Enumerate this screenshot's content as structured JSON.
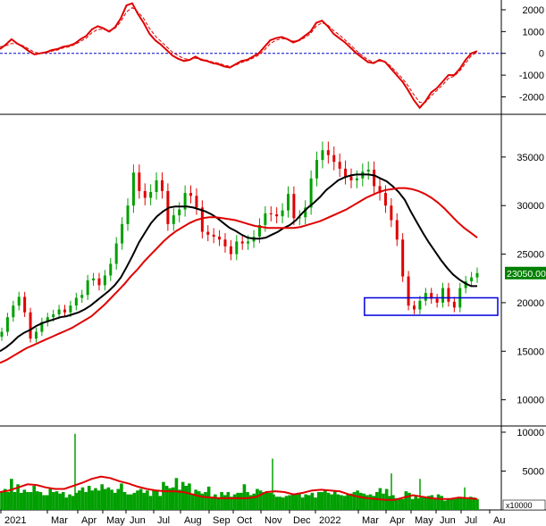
{
  "chart_data": [
    {
      "type": "line",
      "panel": "oscillator",
      "yticks": [
        2000,
        1000,
        0,
        -1000,
        -2000
      ],
      "ylim": [
        -2800,
        2450
      ],
      "zero_line": true,
      "series": [
        {
          "color": "#e00000",
          "style": "solid",
          "values": [
            200,
            400,
            650,
            450,
            300,
            100,
            -50,
            0,
            50,
            150,
            200,
            300,
            350,
            450,
            650,
            800,
            1100,
            1250,
            1150,
            1000,
            1200,
            1600,
            2200,
            2300,
            1800,
            1400,
            900,
            600,
            400,
            150,
            -100,
            -250,
            -350,
            -300,
            -150,
            -300,
            -350,
            -450,
            -500,
            -600,
            -650,
            -500,
            -350,
            -300,
            -150,
            0,
            300,
            600,
            700,
            750,
            650,
            500,
            600,
            800,
            1000,
            1400,
            1500,
            1250,
            900,
            700,
            500,
            250,
            0,
            -200,
            -400,
            -450,
            -300,
            -400,
            -700,
            -1000,
            -1300,
            -1700,
            -2150,
            -2500,
            -2200,
            -1800,
            -1600,
            -1300,
            -1000,
            -1000,
            -700,
            -300,
            0,
            100
          ],
          "type": "line"
        },
        {
          "color": "#e00000",
          "style": "dashed",
          "values": [
            300,
            350,
            450,
            450,
            350,
            200,
            50,
            0,
            20,
            100,
            150,
            250,
            300,
            400,
            550,
            700,
            950,
            1100,
            1100,
            1050,
            1150,
            1450,
            1900,
            2100,
            1900,
            1600,
            1150,
            800,
            550,
            300,
            50,
            -100,
            -250,
            -280,
            -220,
            -260,
            -320,
            -400,
            -450,
            -540,
            -600,
            -540,
            -420,
            -340,
            -220,
            -80,
            150,
            450,
            600,
            680,
            650,
            560,
            580,
            720,
            900,
            1250,
            1400,
            1300,
            1050,
            850,
            620,
            380,
            120,
            -100,
            -300,
            -400,
            -350,
            -380,
            -600,
            -880,
            -1150,
            -1500,
            -1900,
            -2250,
            -2250,
            -1950,
            -1700,
            -1450,
            -1150,
            -1050,
            -800,
            -450,
            -100,
            50
          ],
          "type": "line"
        }
      ]
    },
    {
      "type": "line",
      "panel": "price",
      "yticks": [
        35000,
        30000,
        25000,
        20000,
        15000,
        10000
      ],
      "ylim": [
        7300,
        39400
      ],
      "last_price_label": "23050.00",
      "last_price": 23050,
      "last_price_color": "#008000",
      "candle_up_color": "#00a000",
      "candle_down_color": "#e00000",
      "close": [
        17000,
        18500,
        19700,
        20600,
        19000,
        16300,
        17000,
        18000,
        18500,
        18800,
        19300,
        19000,
        19700,
        20500,
        20800,
        22300,
        22500,
        21800,
        22800,
        24000,
        26100,
        28100,
        30000,
        33400,
        31500,
        30800,
        31400,
        32600,
        31500,
        28100,
        29000,
        29600,
        31300,
        31000,
        29800,
        27300,
        27000,
        26800,
        26500,
        25800,
        25000,
        26300,
        26100,
        26300,
        26800,
        28000,
        29200,
        29100,
        28900,
        29500,
        31200,
        28700,
        28800,
        29800,
        32800,
        34700,
        35700,
        35200,
        34500,
        33800,
        33000,
        32600,
        32800,
        33500,
        33700,
        32000,
        31300,
        30000,
        28500,
        26500,
        22700,
        19700,
        19300,
        20200,
        21000,
        20400,
        20000,
        21500,
        20100,
        19500,
        21500,
        22200,
        22600,
        23050
      ],
      "series": [
        {
          "color": "#000000",
          "role": "short moving average",
          "values": [
            15000,
            15400,
            15900,
            16500,
            16900,
            17200,
            17600,
            17900,
            18100,
            18300,
            18500,
            18600,
            18800,
            19000,
            19300,
            19700,
            20200,
            20700,
            21200,
            21800,
            22600,
            23700,
            24900,
            26200,
            27200,
            28200,
            28900,
            29400,
            29800,
            29900,
            29900,
            29900,
            29800,
            29600,
            29400,
            29100,
            28700,
            28200,
            27700,
            27400,
            27000,
            26700,
            26600,
            26600,
            26700,
            27000,
            27300,
            27700,
            28000,
            28500,
            29200,
            29800,
            30300,
            30900,
            31600,
            32100,
            32600,
            32900,
            33100,
            33200,
            33200,
            33200,
            33100,
            32800,
            32500,
            32000,
            31400,
            30600,
            29400,
            28300,
            27200,
            26200,
            25300,
            24400,
            23600,
            22900,
            22400,
            22000,
            21700,
            21700
          ],
          "type": "line"
        },
        {
          "color": "#e00000",
          "role": "long moving average",
          "values": [
            13800,
            14100,
            14500,
            14900,
            15300,
            15600,
            15900,
            16200,
            16500,
            16800,
            17100,
            17400,
            17800,
            18200,
            18600,
            19200,
            19800,
            20500,
            21200,
            21900,
            22700,
            23400,
            24200,
            24900,
            25600,
            26300,
            26900,
            27400,
            27800,
            28200,
            28500,
            28700,
            28800,
            28800,
            28700,
            28600,
            28500,
            28300,
            28100,
            27900,
            27800,
            27700,
            27700,
            27700,
            27700,
            27700,
            27800,
            28000,
            28200,
            28400,
            28700,
            29000,
            29300,
            29600,
            30000,
            30400,
            30800,
            31100,
            31400,
            31600,
            31700,
            31800,
            31800,
            31700,
            31500,
            31200,
            30800,
            30300,
            29700,
            29000,
            28300,
            27700,
            27200,
            26700
          ],
          "type": "line"
        }
      ]
    },
    {
      "type": "bar",
      "panel": "volume",
      "yticks": [
        10000,
        5000
      ],
      "ylim": [
        0,
        10800
      ],
      "unit_label": "x10000",
      "bar_color": "#00a000",
      "values": [
        2400,
        2700,
        2300,
        4000,
        2300,
        3300,
        2200,
        2600,
        2300,
        2300,
        3100,
        2400,
        2300,
        1900,
        1900,
        2700,
        2300,
        2400,
        2100,
        2300,
        1600,
        2000,
        1800,
        2200,
        2500,
        2900,
        2300,
        3100,
        2500,
        2800,
        2500,
        3300,
        2700,
        2900,
        2600,
        2200,
        2700,
        3400,
        2300,
        2000,
        2000,
        2200,
        2500,
        2700,
        2200,
        2500,
        1800,
        2500,
        2600,
        1800,
        3600,
        3100,
        2800,
        2900,
        4100,
        2600,
        3600,
        3100,
        3400,
        2100,
        2600,
        2400,
        2100,
        2300,
        3000,
        1700,
        2000,
        1600,
        2300,
        1900,
        2300,
        1700,
        2000,
        2200,
        2200,
        3300,
        2300,
        1900,
        2100,
        2700,
        2500,
        2300,
        2400,
        2200,
        2000,
        1700,
        1700,
        1600,
        1800,
        1900,
        2000,
        2000,
        2100,
        1600,
        2000,
        1900,
        2200,
        1600,
        2300,
        2300,
        2600,
        2200,
        2000,
        2400,
        2000,
        1900,
        1800,
        2000,
        2100,
        2300,
        2500,
        2200,
        2100,
        1900,
        2000,
        1800,
        2300,
        2800,
        2100,
        2700,
        1800,
        1900,
        1500,
        1500,
        1400,
        2400,
        2200,
        1400,
        1800,
        1500,
        1600,
        1600,
        1800,
        1900,
        1400,
        2000,
        1800,
        1200,
        1500,
        1500,
        1400,
        1600,
        1600,
        1500,
        1400,
        1700,
        1600,
        1400
      ],
      "spikes": [
        [
          84,
          9800
        ],
        [
          305,
          6600
        ],
        [
          438,
          4700
        ],
        [
          470,
          4000
        ],
        [
          520,
          2900
        ]
      ],
      "series": [
        {
          "color": "#e00000",
          "role": "volume moving average",
          "values": [
            2300,
            2500,
            2900,
            3300,
            3200,
            2900,
            2700,
            2700,
            3100,
            3500,
            4000,
            4300,
            4100,
            3700,
            3400,
            3000,
            2700,
            2500,
            2400,
            2400,
            2300,
            2000,
            1700,
            1600,
            1500,
            1500,
            1500,
            1500,
            1700,
            2300,
            2400,
            2300,
            2000,
            2200,
            2500,
            2600,
            2500,
            2400,
            2000,
            1700,
            1500,
            1400,
            1300,
            1300,
            1600,
            1900,
            1700,
            1500,
            1400,
            1400,
            1600,
            1500,
            1400
          ],
          "type": "line"
        }
      ]
    },
    {
      "type": "axis",
      "panel": "time-axis",
      "tick_labels": [
        "2021",
        "Mar",
        "Apr",
        "May",
        "Jun",
        "Jul",
        "Aug",
        "Sep",
        "Oct",
        "Nov",
        "Dec",
        "2022",
        "Mar",
        "Apr",
        "May",
        "Jun",
        "Jul",
        "Au"
      ]
    }
  ],
  "annotation": {
    "shape": "rectangle",
    "color": "#0000dd",
    "y_range": [
      18700,
      20500
    ],
    "x_range_index": [
      68,
      84
    ]
  }
}
